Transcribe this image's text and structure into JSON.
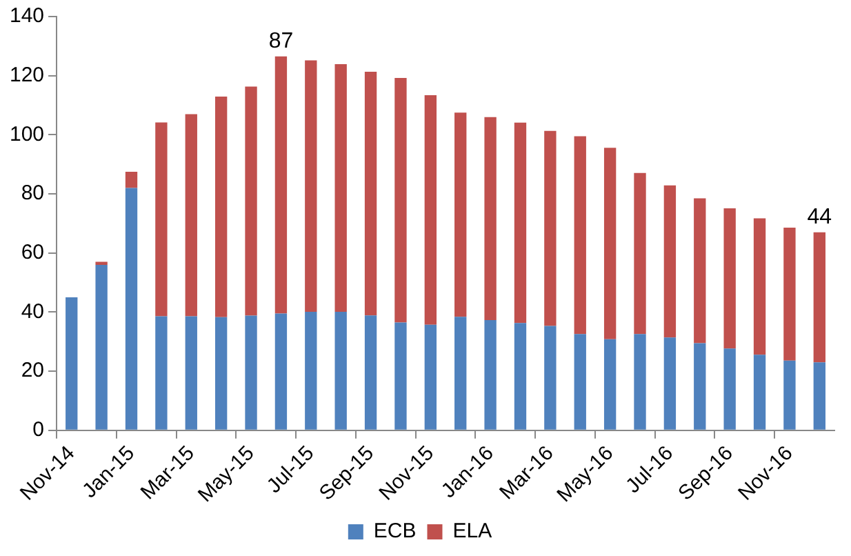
{
  "chart_data": {
    "type": "bar",
    "stacked": true,
    "legend": "bottom",
    "grid": false,
    "categories": [
      "Nov-14",
      null,
      "Jan-15",
      null,
      "Mar-15",
      null,
      "May-15",
      null,
      "Jul-15",
      null,
      "Sep-15",
      null,
      "Nov-15",
      null,
      "Jan-16",
      null,
      "Mar-16",
      null,
      "May-16",
      null,
      "Jul-16",
      null,
      "Sep-16",
      null,
      "Nov-16",
      null
    ],
    "ylim": [
      0,
      140
    ],
    "yticks": [
      0,
      20,
      40,
      60,
      80,
      100,
      120,
      140
    ],
    "series": [
      {
        "name": "ECB",
        "color": "#4f81bd",
        "values": [
          45,
          56,
          82,
          38.6,
          38.6,
          38.3,
          38.8,
          39.5,
          40.1,
          40.1,
          38.9,
          36.5,
          35.7,
          38.4,
          37.3,
          36.3,
          35.3,
          32.6,
          30.8,
          32.6,
          31.4,
          29.5,
          27.7,
          25.6,
          23.6,
          23
        ]
      },
      {
        "name": "ELA",
        "color": "#c0504d",
        "values": [
          0,
          1,
          5.5,
          65.6,
          68.4,
          74.6,
          77.5,
          87,
          85.1,
          83.8,
          82.4,
          82.7,
          77.7,
          69.1,
          68.7,
          67.8,
          66,
          66.9,
          64.8,
          54.5,
          51.5,
          49,
          47.4,
          46.1,
          45,
          44
        ],
        "value_labels": [
          null,
          null,
          null,
          null,
          null,
          null,
          null,
          "87",
          null,
          null,
          null,
          null,
          null,
          null,
          null,
          null,
          null,
          null,
          null,
          null,
          null,
          null,
          null,
          null,
          null,
          "44"
        ]
      }
    ]
  }
}
